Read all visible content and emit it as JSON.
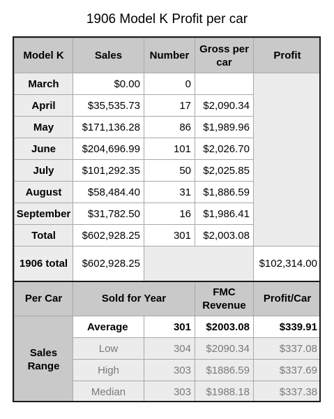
{
  "title": "1906 Model K Profit per car",
  "headers": {
    "model": "Model K",
    "sales": "Sales",
    "number": "Number",
    "gross": "Gross per car",
    "profit": "Profit"
  },
  "months": [
    {
      "label": "March",
      "sales": "$0.00",
      "number": "0",
      "gross": ""
    },
    {
      "label": "April",
      "sales": "$35,535.73",
      "number": "17",
      "gross": "$2,090.34"
    },
    {
      "label": "May",
      "sales": "$171,136.28",
      "number": "86",
      "gross": "$1,989.96"
    },
    {
      "label": "June",
      "sales": "$204,696.99",
      "number": "101",
      "gross": "$2,026.70"
    },
    {
      "label": "July",
      "sales": "$101,292.35",
      "number": "50",
      "gross": "$2,025.85"
    },
    {
      "label": "August",
      "sales": "$58,484.40",
      "number": "31",
      "gross": "$1,886.59"
    },
    {
      "label": "September",
      "sales": "$31,782.50",
      "number": "16",
      "gross": "$1,986.41"
    },
    {
      "label": "Total",
      "sales": "$602,928.25",
      "number": "301",
      "gross": "$2,003.08"
    }
  ],
  "year_total": {
    "label": "1906 total",
    "sales": "$602,928.25",
    "profit": "$102,314.00"
  },
  "per_car": {
    "header_label": "Per Car",
    "sold_header": "Sold for Year",
    "fmc_header": "FMC Revenue",
    "profit_header": "Profit/Car",
    "range_label": "Sales Range",
    "rows": [
      {
        "label": "Average",
        "sold": "301",
        "fmc": "$2003.08",
        "profit": "$339.91"
      },
      {
        "label": "Low",
        "sold": "304",
        "fmc": "$2090.34",
        "profit": "$337.08"
      },
      {
        "label": "High",
        "sold": "303",
        "fmc": "$1886.59",
        "profit": "$337.69"
      },
      {
        "label": "Median",
        "sold": "303",
        "fmc": "$1988.18",
        "profit": "$337.38"
      }
    ]
  }
}
